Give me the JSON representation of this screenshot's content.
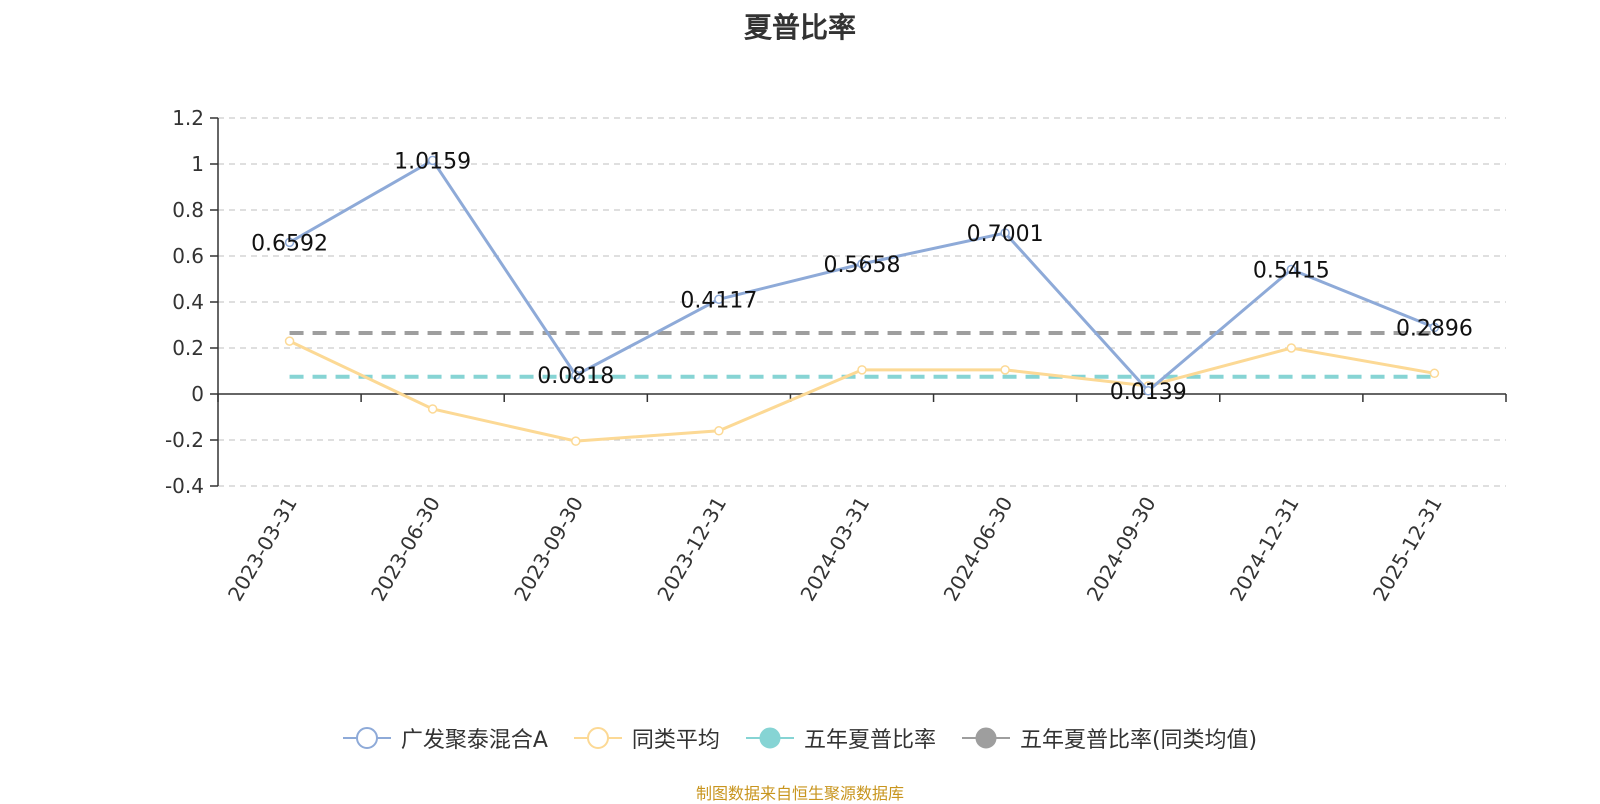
{
  "chart_data": {
    "type": "line",
    "title": "夏普比率",
    "categories": [
      "2023-03-31",
      "2023-06-30",
      "2023-09-30",
      "2023-12-31",
      "2024-03-31",
      "2024-06-30",
      "2024-09-30",
      "2024-12-31",
      "2025-12-31"
    ],
    "ylim": [
      -0.4,
      1.2
    ],
    "yticks": [
      1.2,
      1,
      0.8,
      0.6,
      0.4,
      0.2,
      0,
      -0.2,
      -0.4
    ],
    "grid": true,
    "legend_position": "bottom",
    "series": [
      {
        "name": "广发聚泰混合A",
        "color": "#8eaad8",
        "style": "solid",
        "show_labels": true,
        "values": [
          0.6592,
          1.0159,
          0.0818,
          0.4117,
          0.5658,
          0.7001,
          0.0139,
          0.5415,
          0.2896
        ],
        "labels": [
          "0.6592",
          "1.0159",
          "0.0818",
          "0.4117",
          "0.5658",
          "0.7001",
          "0.0139",
          "0.5415",
          "0.2896"
        ]
      },
      {
        "name": "同类平均",
        "color": "#fcd995",
        "style": "solid",
        "show_labels": false,
        "values": [
          0.23,
          -0.065,
          -0.205,
          -0.16,
          0.105,
          0.105,
          0.035,
          0.2,
          0.09
        ]
      },
      {
        "name": "五年夏普比率",
        "color": "#86d4d4",
        "style": "dashed",
        "show_labels": false,
        "values": [
          0.075,
          0.075,
          0.075,
          0.075,
          0.075,
          0.075,
          0.075,
          0.075,
          0.075
        ]
      },
      {
        "name": "五年夏普比率(同类均值)",
        "color": "#9e9e9e",
        "style": "dashed",
        "show_labels": false,
        "values": [
          0.265,
          0.265,
          0.265,
          0.265,
          0.265,
          0.265,
          0.265,
          0.265,
          0.265
        ]
      }
    ]
  },
  "footer": {
    "source": "制图数据来自恒生聚源数据库"
  }
}
